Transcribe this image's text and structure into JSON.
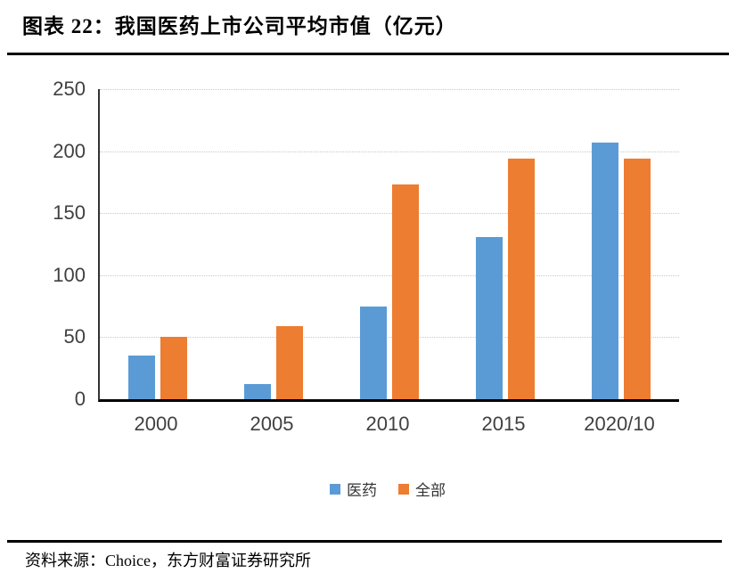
{
  "header": {
    "title": "图表 22：我国医药上市公司平均市值（亿元）"
  },
  "footer": {
    "source": "资料来源：Choice，东方财富证券研究所"
  },
  "colors": {
    "series_pharma": "#5B9BD5",
    "series_all": "#ED7D31",
    "axis_line": "#000000",
    "tick_text": "#404040",
    "gridline": "#c9c9c9",
    "rule": "#000000"
  },
  "chart_data": {
    "type": "bar",
    "title": "我国医药上市公司平均市值（亿元）",
    "xlabel": "",
    "ylabel": "",
    "categories": [
      "2000",
      "2005",
      "2010",
      "2015",
      "2020/10"
    ],
    "series": [
      {
        "name": "医药",
        "color": "#5B9BD5",
        "values": [
          35,
          12,
          75,
          131,
          207
        ]
      },
      {
        "name": "全部",
        "color": "#ED7D31",
        "values": [
          50,
          59,
          173,
          194,
          194
        ]
      }
    ],
    "ylim": [
      0,
      250
    ],
    "y_ticks": [
      0,
      50,
      100,
      150,
      200,
      250
    ],
    "grid": "horizontal-dotted",
    "legend_position": "bottom"
  }
}
